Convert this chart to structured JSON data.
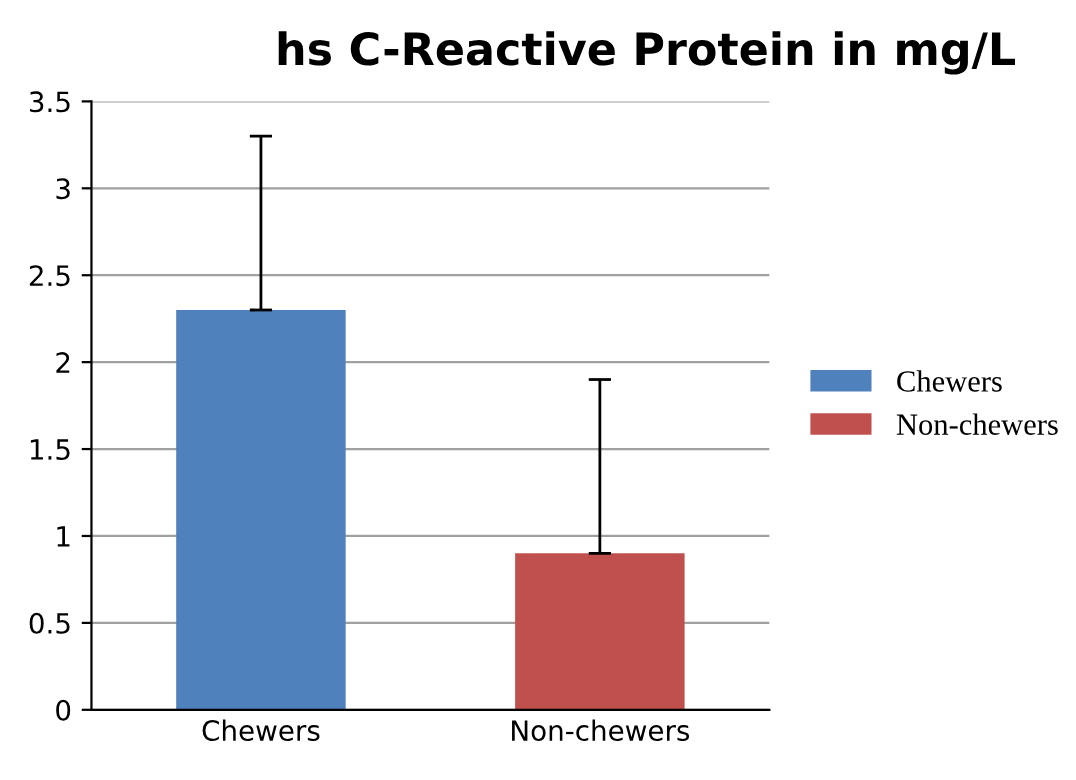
{
  "chart_data": {
    "type": "bar",
    "title": "hs C-Reactive Protein in mg/L",
    "categories": [
      "Chewers",
      "Non-chewers"
    ],
    "series": [
      {
        "name": "Chewers",
        "color": "#4f81bd",
        "values": [
          2.3,
          null
        ],
        "errors": [
          [
            2.3,
            3.3
          ],
          null
        ]
      },
      {
        "name": "Non-chewers",
        "color": "#c0504d",
        "values": [
          null,
          0.9
        ],
        "errors": [
          null,
          [
            0.9,
            1.9
          ]
        ]
      }
    ],
    "ylim": [
      0,
      3.5
    ],
    "yticks": [
      0,
      0.5,
      1,
      1.5,
      2,
      2.5,
      3,
      3.5
    ],
    "grid": "y",
    "legend": "right"
  }
}
